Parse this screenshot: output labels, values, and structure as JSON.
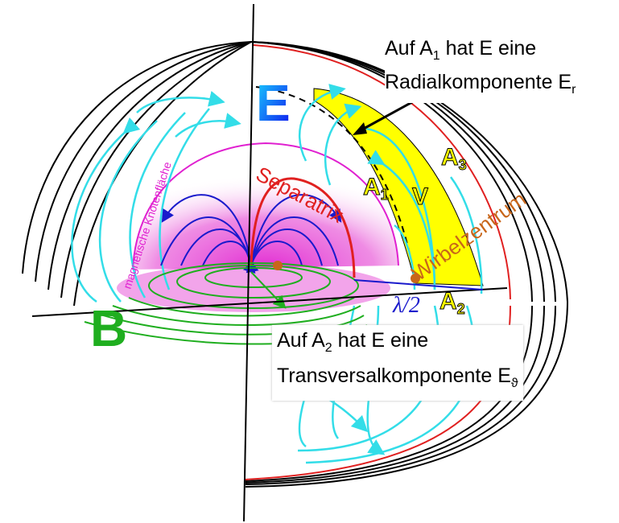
{
  "colors": {
    "e_field": "#33dde8",
    "b_field": "#1fae1f",
    "near_field": "#1a1acc",
    "separatrix": "#e02020",
    "node_surface": "#e020d0",
    "vortex_center": "#c8661a",
    "yellow_band": "#ffff00",
    "wavefront": "#000000"
  },
  "labels": {
    "E": "E",
    "B": "B",
    "separatrix": "Separatrix",
    "node_surface": "magnetische Knotenfläche",
    "vortex_center": "Wirbelzentrum",
    "A1": "A",
    "A1_sub": "1",
    "A2": "A",
    "A2_sub": "2",
    "A3": "A",
    "A3_sub": "3",
    "V": "V",
    "half_wavelength": "λ/2"
  },
  "callout_a1": {
    "line1_pre": "Auf A",
    "line1_sub": "1",
    "line1_post": " hat E eine",
    "line2_pre": "Radialkomponente E",
    "line2_sub": "r"
  },
  "callout_a2": {
    "line1_pre": "Auf A",
    "line1_sub": "2",
    "line1_post": " hat E eine",
    "line2_pre": "Transversalkomponente E",
    "line2_sub": "ϑ"
  }
}
